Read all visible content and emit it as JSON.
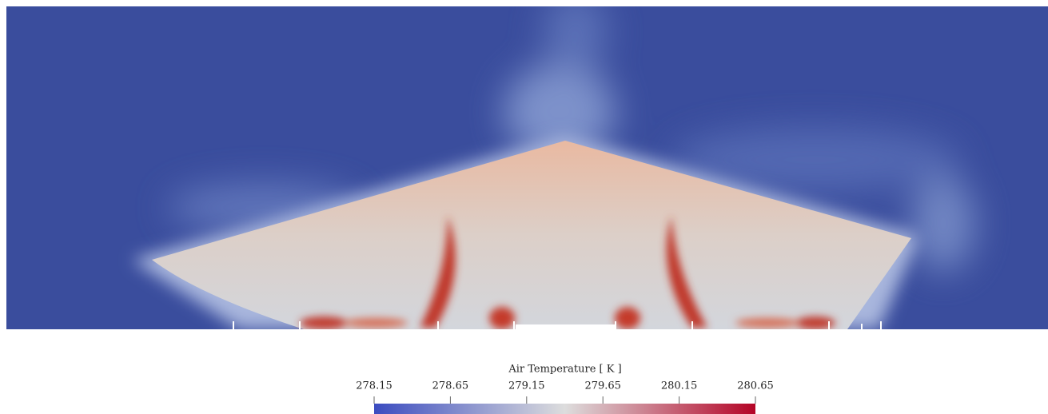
{
  "chart_data": {
    "type": "field",
    "colorbar_title": "Air Temperature [ K ]",
    "clim": [
      278.15,
      280.65
    ],
    "ticks": [
      278.15,
      278.65,
      279.15,
      279.65,
      280.15,
      280.65
    ],
    "colormap": [
      "#3b4cc0",
      "#dddddd",
      "#b40426"
    ]
  }
}
